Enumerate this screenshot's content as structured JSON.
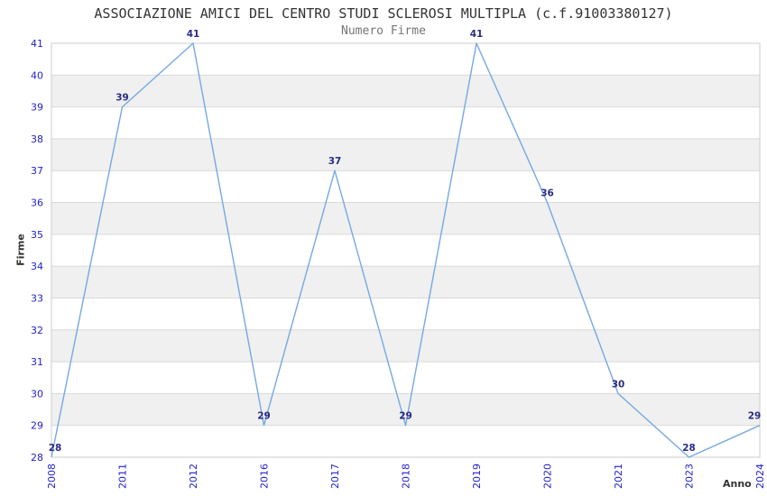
{
  "header": {
    "title": "ASSOCIAZIONE AMICI DEL CENTRO STUDI SCLEROSI MULTIPLA (c.f.91003380127)",
    "subtitle": "Numero Firme"
  },
  "axes": {
    "ylabel": "Firme",
    "xlabel": "Anno"
  },
  "colors": {
    "line": "#74a9e2",
    "tick_label": "#2222cc",
    "point_label": "#2b2b85",
    "band": "#f0f0f0",
    "grid": "#d9d9d9",
    "border": "#cccccc",
    "title": "#333333",
    "subtitle": "#757575",
    "axis_label": "#333333",
    "background": "#ffffff"
  },
  "chart_data": {
    "type": "line",
    "title": "ASSOCIAZIONE AMICI DEL CENTRO STUDI SCLEROSI MULTIPLA (c.f.91003380127)",
    "subtitle": "Numero Firme",
    "xlabel": "Anno",
    "ylabel": "Firme",
    "categories": [
      "2008",
      "2011",
      "2012",
      "2016",
      "2017",
      "2018",
      "2019",
      "2020",
      "2021",
      "2023",
      "2024"
    ],
    "values": [
      28,
      39,
      41,
      29,
      37,
      29,
      41,
      36,
      30,
      28,
      29
    ],
    "ylim": [
      28,
      41
    ],
    "ytick_step": 1,
    "grid": true,
    "alternating_bands": true,
    "legend_position": "none",
    "point_labels_visible": true,
    "x_tick_rotation": -90
  }
}
